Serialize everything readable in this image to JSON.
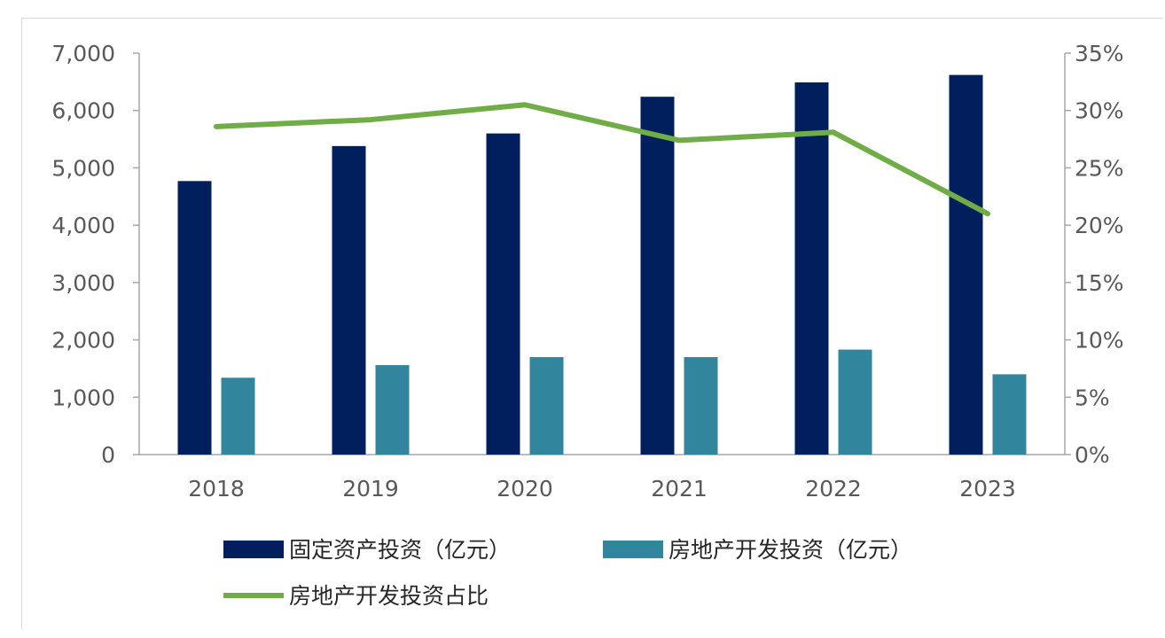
{
  "chart_data": {
    "type": "bar",
    "categories": [
      "2018",
      "2019",
      "2020",
      "2021",
      "2022",
      "2023"
    ],
    "series": [
      {
        "name": "固定资产投资（亿元）",
        "kind": "bar",
        "axis": "left",
        "color": "#001f5c",
        "values": [
          4770,
          5380,
          5600,
          6240,
          6490,
          6620
        ]
      },
      {
        "name": "房地产开发投资（亿元）",
        "kind": "bar",
        "axis": "left",
        "color": "#31859c",
        "values": [
          1340,
          1560,
          1700,
          1700,
          1830,
          1400
        ]
      },
      {
        "name": "房地产开发投资占比",
        "kind": "line",
        "axis": "right",
        "color": "#70ad47",
        "values": [
          0.286,
          0.292,
          0.305,
          0.274,
          0.281,
          0.21
        ]
      }
    ],
    "y_left": {
      "range": [
        0,
        7000
      ],
      "ticks": [
        "0",
        "1,000",
        "2,000",
        "3,000",
        "4,000",
        "5,000",
        "6,000",
        "7,000"
      ]
    },
    "y_right": {
      "range": [
        0,
        0.35
      ],
      "ticks": [
        "0%",
        "5%",
        "10%",
        "15%",
        "20%",
        "25%",
        "30%",
        "35%"
      ]
    },
    "grid": false,
    "legend_position": "bottom"
  }
}
